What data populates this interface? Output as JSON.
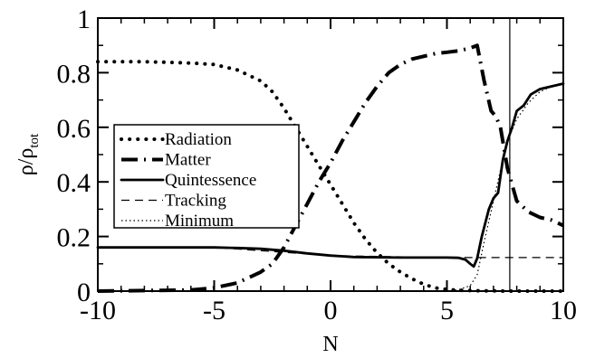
{
  "chart_data": {
    "type": "line",
    "title": "",
    "xlabel": "N",
    "ylabel": "ρ/ρ",
    "ylabel_sub": "tot",
    "xlim": [
      -10,
      10
    ],
    "ylim": [
      0,
      1
    ],
    "xticks": [
      -10,
      -5,
      0,
      5,
      10
    ],
    "xtick_labels": [
      "-10",
      "-5",
      "0",
      "5",
      "10"
    ],
    "yticks": [
      0,
      0.2,
      0.4,
      0.6,
      0.8,
      1
    ],
    "ytick_labels": [
      "0",
      "0.2",
      "0.4",
      "0.6",
      "0.8",
      "1"
    ],
    "grid": false,
    "legend_position": "middle-left",
    "vertical_marker_x": 7.7,
    "series": [
      {
        "name": "Radiation",
        "style": "dotted-bold",
        "x": [
          -10,
          -9,
          -8,
          -7,
          -6,
          -5,
          -4,
          -3,
          -2.5,
          -2,
          -1.5,
          -1,
          -0.5,
          0,
          0.5,
          1,
          1.5,
          2,
          2.5,
          3,
          3.5,
          4,
          4.5,
          5,
          5.5,
          6,
          6.5,
          7,
          7.5,
          8,
          9,
          10
        ],
        "y": [
          0.84,
          0.84,
          0.84,
          0.838,
          0.835,
          0.83,
          0.81,
          0.77,
          0.73,
          0.67,
          0.6,
          0.53,
          0.46,
          0.39,
          0.32,
          0.25,
          0.19,
          0.14,
          0.1,
          0.07,
          0.045,
          0.025,
          0.012,
          0.006,
          0.003,
          0.002,
          0.001,
          0.001,
          0.0,
          0.0,
          0.0,
          0.0
        ]
      },
      {
        "name": "Matter",
        "style": "dash-dot-bold",
        "x": [
          -10,
          -6,
          -5,
          -4,
          -3,
          -2.5,
          -2,
          -1.5,
          -1,
          -0.5,
          0,
          0.5,
          1,
          1.5,
          2,
          2.5,
          3,
          3.5,
          4,
          4.5,
          5,
          5.5,
          6,
          6.3,
          6.6,
          6.9,
          7.1,
          7.3,
          7.6,
          8,
          8.5,
          9,
          9.5,
          10
        ],
        "y": [
          0.0,
          0.004,
          0.012,
          0.03,
          0.07,
          0.1,
          0.16,
          0.24,
          0.32,
          0.4,
          0.47,
          0.55,
          0.62,
          0.69,
          0.75,
          0.8,
          0.83,
          0.85,
          0.86,
          0.87,
          0.875,
          0.88,
          0.89,
          0.9,
          0.77,
          0.66,
          0.64,
          0.6,
          0.45,
          0.33,
          0.29,
          0.27,
          0.26,
          0.24
        ]
      },
      {
        "name": "Quintessence",
        "style": "solid",
        "x": [
          -10,
          -8,
          -6,
          -5,
          -4,
          -3,
          -2,
          -1,
          0,
          1,
          2,
          3,
          4,
          5,
          5.5,
          5.8,
          6.0,
          6.15,
          6.3,
          6.5,
          6.8,
          7.0,
          7.2,
          7.4,
          7.6,
          7.8,
          8.0,
          8.3,
          8.6,
          9.0,
          9.5,
          10
        ],
        "y": [
          0.16,
          0.16,
          0.16,
          0.16,
          0.158,
          0.155,
          0.148,
          0.138,
          0.13,
          0.125,
          0.124,
          0.123,
          0.123,
          0.123,
          0.122,
          0.115,
          0.1,
          0.09,
          0.12,
          0.2,
          0.3,
          0.34,
          0.36,
          0.48,
          0.55,
          0.6,
          0.66,
          0.68,
          0.72,
          0.74,
          0.75,
          0.76
        ]
      },
      {
        "name": "Tracking",
        "style": "dashed-thin",
        "x": [
          -10,
          -5,
          0,
          5,
          6.5,
          7,
          8,
          9,
          10
        ],
        "y": [
          0.16,
          0.16,
          0.13,
          0.123,
          0.123,
          0.123,
          0.123,
          0.123,
          0.123
        ]
      },
      {
        "name": "Minimum",
        "style": "dotted-thin",
        "x": [
          5,
          5.5,
          6,
          6.3,
          6.6,
          7,
          7.4,
          7.7,
          8,
          8.5,
          9,
          9.5,
          10
        ],
        "y": [
          0.0,
          0.005,
          0.02,
          0.06,
          0.18,
          0.33,
          0.48,
          0.57,
          0.63,
          0.69,
          0.73,
          0.75,
          0.76
        ]
      }
    ]
  }
}
